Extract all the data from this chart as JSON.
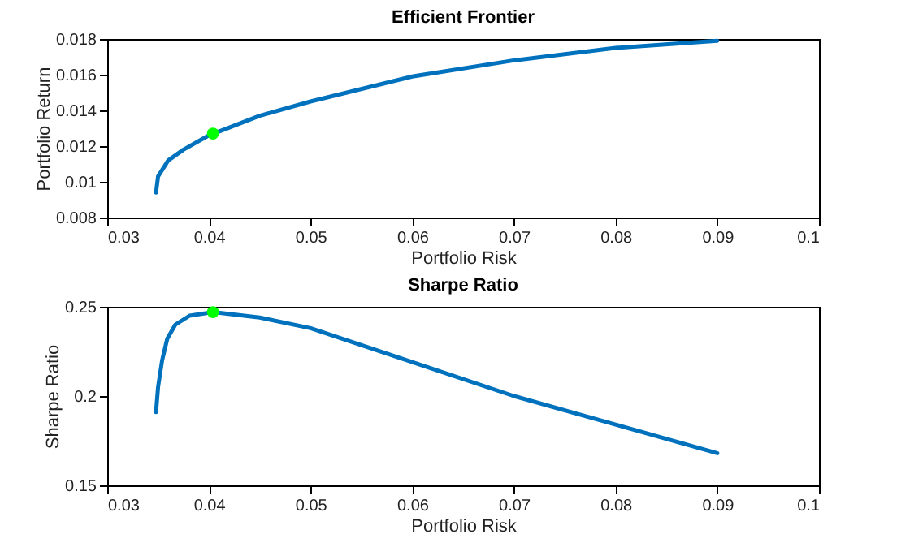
{
  "chart_data": [
    {
      "type": "line",
      "title": "Efficient  Frontier",
      "xlabel": "Portfolio Risk",
      "ylabel": "Portfolio Return",
      "xlim": [
        0.03,
        0.1
      ],
      "ylim": [
        0.008,
        0.018
      ],
      "xticks": [
        0.03,
        0.04,
        0.05,
        0.06,
        0.07,
        0.08,
        0.09,
        0.1
      ],
      "yticks": [
        0.008,
        0.01,
        0.012,
        0.014,
        0.016,
        0.018
      ],
      "series": [
        {
          "color": "#0072bd",
          "x": [
            0.0348,
            0.035,
            0.036,
            0.0375,
            0.04,
            0.045,
            0.05,
            0.06,
            0.07,
            0.08,
            0.09
          ],
          "values": [
            0.0094,
            0.0103,
            0.0112,
            0.0118,
            0.0126,
            0.0137,
            0.0145,
            0.0159,
            0.0168,
            0.0175,
            0.0179
          ]
        },
        {
          "type": "scatter",
          "color": "#00ff00",
          "x": [
            0.0404
          ],
          "values": [
            0.0127
          ]
        }
      ]
    },
    {
      "type": "line",
      "title": "Sharpe  Ratio",
      "xlabel": "Portfolio Risk",
      "ylabel": "Sharpe Ratio",
      "xlim": [
        0.03,
        0.1
      ],
      "ylim": [
        0.15,
        0.25
      ],
      "xticks": [
        0.03,
        0.04,
        0.05,
        0.06,
        0.07,
        0.08,
        0.09,
        0.1
      ],
      "yticks": [
        0.15,
        0.2,
        0.25
      ],
      "series": [
        {
          "color": "#0072bd",
          "x": [
            0.0348,
            0.035,
            0.0354,
            0.0359,
            0.0367,
            0.0381,
            0.0404,
            0.045,
            0.05,
            0.06,
            0.07,
            0.08,
            0.09
          ],
          "values": [
            0.191,
            0.205,
            0.22,
            0.232,
            0.24,
            0.245,
            0.247,
            0.244,
            0.238,
            0.219,
            0.2,
            0.184,
            0.168
          ]
        },
        {
          "type": "scatter",
          "color": "#00ff00",
          "x": [
            0.0404
          ],
          "values": [
            0.247
          ]
        }
      ]
    }
  ]
}
